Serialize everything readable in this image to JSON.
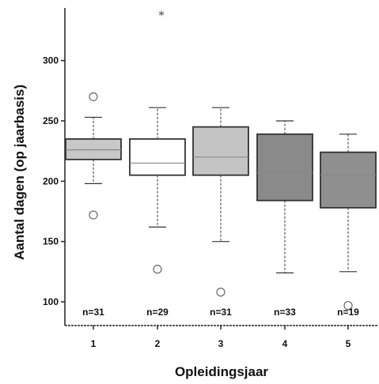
{
  "chart_data": {
    "type": "boxplot",
    "xlabel": "Opleidingsjaar",
    "ylabel": "Aantal dagen (op jaarbasis)",
    "ylim": [
      95,
      355
    ],
    "yticks": [
      100,
      150,
      200,
      250,
      300
    ],
    "categories": [
      "1",
      "2",
      "3",
      "4",
      "5"
    ],
    "n_labels": [
      "n=31",
      "n=29",
      "n=31",
      "n=33",
      "n=19"
    ],
    "boxes": [
      {
        "category": "1",
        "whisker_low": 198,
        "q1": 218,
        "median": 226,
        "q3": 235,
        "whisker_high": 253,
        "fill": "#c8c8c8",
        "outliers": [
          {
            "value": 172,
            "marker": "circle"
          },
          {
            "value": 270,
            "marker": "circle"
          }
        ]
      },
      {
        "category": "2",
        "whisker_low": 162,
        "q1": 205,
        "median": 215,
        "q3": 235,
        "whisker_high": 261,
        "fill": "#ffffff",
        "outliers": [
          {
            "value": 127,
            "marker": "circle"
          },
          {
            "value": 338,
            "marker": "star"
          }
        ]
      },
      {
        "category": "3",
        "whisker_low": 150,
        "q1": 205,
        "median": 220,
        "q3": 245,
        "whisker_high": 261,
        "fill": "#c4c4c4",
        "outliers": [
          {
            "value": 108,
            "marker": "circle"
          }
        ]
      },
      {
        "category": "4",
        "whisker_low": 124,
        "q1": 184,
        "median": 207,
        "q3": 239,
        "whisker_high": 250,
        "fill": "#8a8a8a",
        "outliers": []
      },
      {
        "category": "5",
        "whisker_low": 125,
        "q1": 178,
        "median": 205,
        "q3": 224,
        "whisker_high": 239,
        "fill": "#8f8f8f",
        "outliers": [
          {
            "value": 97,
            "marker": "circle"
          }
        ]
      }
    ],
    "grid": false
  },
  "colors": {
    "axis": "#222222",
    "whisker": "#333333",
    "box_stroke": "#333333",
    "median": "#888888"
  }
}
